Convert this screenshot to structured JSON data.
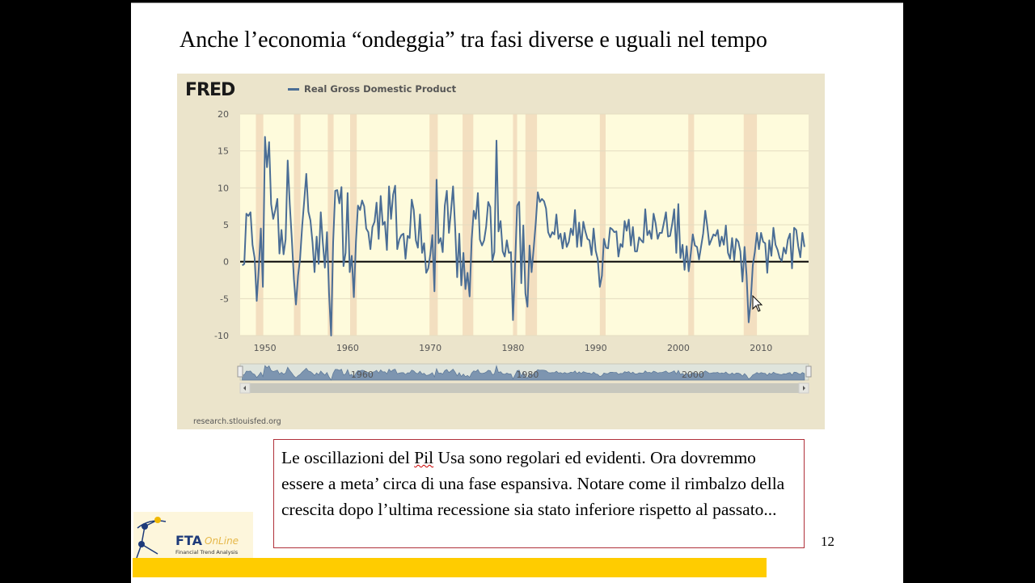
{
  "slide": {
    "title": "Anche l’economia “ondeggia” tra fasi diverse e uguali nel tempo",
    "note_before": "Le oscillazioni del ",
    "note_pil": "Pil",
    "note_after": " Usa sono regolari ed evidenti. Ora dovremmo essere a meta’ circa di una fase espansiva. Notare come il rimbalzo della crescita dopo l’ultima recessione sia stato inferiore rispetto al passato...",
    "page_number": "12",
    "logo": {
      "main": "FTA",
      "accent": "OnLine",
      "sub": "Financial  Trend  Analysis"
    },
    "accent_color": "#ffcc00"
  },
  "chart_data": {
    "type": "line",
    "brand": "FRED",
    "source": "research.stlouisfed.org",
    "series": [
      {
        "name": "Real Gross Domestic Product",
        "color": "#4a6d95"
      }
    ],
    "ylim": [
      -10,
      20
    ],
    "yticks": [
      "20",
      "15",
      "10",
      "5",
      "0",
      "-5",
      "-10"
    ],
    "xlim": [
      1947,
      2015.75
    ],
    "xticks": [
      "1950",
      "1960",
      "1970",
      "1980",
      "1990",
      "2000",
      "2010"
    ],
    "navigator_labels": [
      "1960",
      "1980",
      "2000"
    ],
    "grid": true,
    "legend": "top-left",
    "recessions": [
      [
        1948.9,
        1949.8
      ],
      [
        1953.5,
        1954.3
      ],
      [
        1957.6,
        1958.3
      ],
      [
        1960.3,
        1961.1
      ],
      [
        1969.9,
        1970.9
      ],
      [
        1973.9,
        1975.2
      ],
      [
        1980.0,
        1980.5
      ],
      [
        1981.5,
        1982.9
      ],
      [
        1990.5,
        1991.2
      ],
      [
        2001.2,
        2001.9
      ],
      [
        2007.9,
        2009.5
      ]
    ],
    "x_start": 1947.25,
    "x_step": 0.25,
    "values": [
      -0.5,
      -0.3,
      6.5,
      6.2,
      6.7,
      2.3,
      0.5,
      -5.3,
      -1.0,
      4.5,
      -3.4,
      16.9,
      12.8,
      16.2,
      7.8,
      5.8,
      7.0,
      8.5,
      1.1,
      4.3,
      1.0,
      3.0,
      13.7,
      7.7,
      3.1,
      -2.4,
      -5.8,
      -1.9,
      0.4,
      4.8,
      8.2,
      11.9,
      6.8,
      5.6,
      2.6,
      -1.4,
      3.4,
      -0.3,
      6.7,
      2.5,
      -0.8,
      4.0,
      -4.2,
      -10.0,
      2.6,
      9.6,
      9.7,
      7.9,
      10.1,
      -0.6,
      1.2,
      9.3,
      -1.4,
      0.8,
      -4.8,
      2.7,
      7.6,
      7.0,
      8.3,
      7.5,
      4.5,
      4.0,
      1.7,
      4.7,
      5.4,
      8.0,
      3.1,
      8.9,
      5.0,
      5.4,
      1.6,
      10.2,
      5.8,
      9.1,
      10.3,
      1.7,
      3.0,
      3.6,
      3.8,
      0.4,
      3.5,
      3.2,
      8.4,
      7.0,
      2.9,
      1.9,
      6.4,
      1.2,
      2.5,
      -1.5,
      -0.9,
      1.0,
      3.6,
      -4.0,
      11.1,
      2.5,
      3.2,
      1.3,
      7.6,
      9.6,
      3.9,
      6.8,
      10.2,
      4.6,
      -2.1,
      3.8,
      -3.2,
      1.2,
      -3.7,
      -1.5,
      -4.7,
      3.0,
      6.9,
      5.8,
      9.3,
      3.0,
      2.2,
      2.9,
      4.7,
      8.1,
      7.4,
      0.1,
      1.3,
      16.4,
      4.1,
      5.5,
      1.4,
      0.7,
      2.9,
      1.2,
      1.3,
      -7.9,
      -0.5,
      7.6,
      8.1,
      -2.9,
      4.9,
      -4.3,
      -6.1,
      2.2,
      -1.4,
      1.8,
      5.3,
      9.4,
      8.1,
      8.5,
      8.2,
      7.2,
      4.0,
      3.3,
      4.0,
      3.7,
      6.4,
      3.1,
      3.8,
      1.8,
      3.9,
      2.0,
      2.7,
      4.5,
      3.6,
      7.0,
      2.0,
      5.3,
      2.1,
      5.4,
      4.1,
      3.1,
      2.9,
      0.9,
      4.5,
      1.5,
      0.3,
      -3.4,
      -1.9,
      3.1,
      1.9,
      1.8,
      4.6,
      4.4,
      4.0,
      4.1,
      0.7,
      2.4,
      2.0,
      5.5,
      4.2,
      5.7,
      2.2,
      4.7,
      1.4,
      1.4,
      3.3,
      2.9,
      2.6,
      7.1,
      3.6,
      4.2,
      3.1,
      6.5,
      5.2,
      3.1,
      3.9,
      3.9,
      5.3,
      6.7,
      3.4,
      3.5,
      5.1,
      7.1,
      1.2,
      7.8,
      0.5,
      2.3,
      -1.1,
      2.1,
      -1.3,
      1.1,
      3.7,
      2.2,
      2.0,
      0.3,
      2.1,
      3.8,
      6.9,
      4.8,
      2.3,
      3.0,
      3.7,
      3.5,
      4.3,
      2.1,
      3.4,
      2.3,
      4.9,
      1.2,
      0.4,
      3.2,
      0.2,
      3.1,
      2.7,
      1.4,
      -2.7,
      2.0,
      -1.9,
      -8.2,
      -5.4,
      -0.5,
      1.3,
      3.9,
      1.7,
      3.9,
      2.7,
      2.5,
      -1.5,
      2.9,
      0.8,
      4.6,
      2.3,
      1.6,
      0.5,
      0.1,
      1.9,
      1.1,
      3.0,
      3.8,
      -0.9,
      4.6,
      4.3,
      2.1,
      0.6,
      3.9,
      2.0
    ]
  }
}
